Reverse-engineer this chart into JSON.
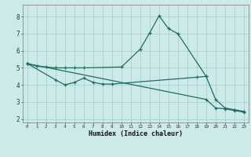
{
  "xlabel": "Humidex (Indice chaleur)",
  "bg_color": "#cdeaea",
  "grid_color": "#a0cccc",
  "line_color": "#1e6e60",
  "ylim": [
    1.8,
    8.7
  ],
  "xlim": [
    -0.5,
    23.5
  ],
  "line1_x": [
    0,
    1,
    2,
    3,
    4,
    5,
    6,
    10,
    12,
    13,
    14,
    15,
    16,
    19
  ],
  "line1_y": [
    5.25,
    5.1,
    5.05,
    5.0,
    5.0,
    5.0,
    5.0,
    5.05,
    6.1,
    7.05,
    8.05,
    7.3,
    7.0,
    4.5
  ],
  "line2_x": [
    0,
    3,
    4,
    5,
    6,
    7,
    8,
    9,
    18,
    19,
    20,
    21,
    22,
    23
  ],
  "line2_y": [
    5.25,
    4.3,
    4.0,
    4.15,
    4.4,
    4.15,
    4.05,
    4.05,
    4.45,
    4.5,
    3.15,
    2.65,
    2.55,
    2.45
  ],
  "line3_x": [
    0,
    19,
    20,
    21,
    22,
    23
  ],
  "line3_y": [
    5.25,
    3.15,
    2.65,
    2.6,
    2.5,
    2.4
  ],
  "yticks": [
    2,
    3,
    4,
    5,
    6,
    7,
    8
  ],
  "xticks": [
    0,
    1,
    2,
    3,
    4,
    5,
    6,
    7,
    8,
    9,
    10,
    11,
    12,
    13,
    14,
    15,
    16,
    17,
    18,
    19,
    20,
    21,
    22,
    23
  ]
}
